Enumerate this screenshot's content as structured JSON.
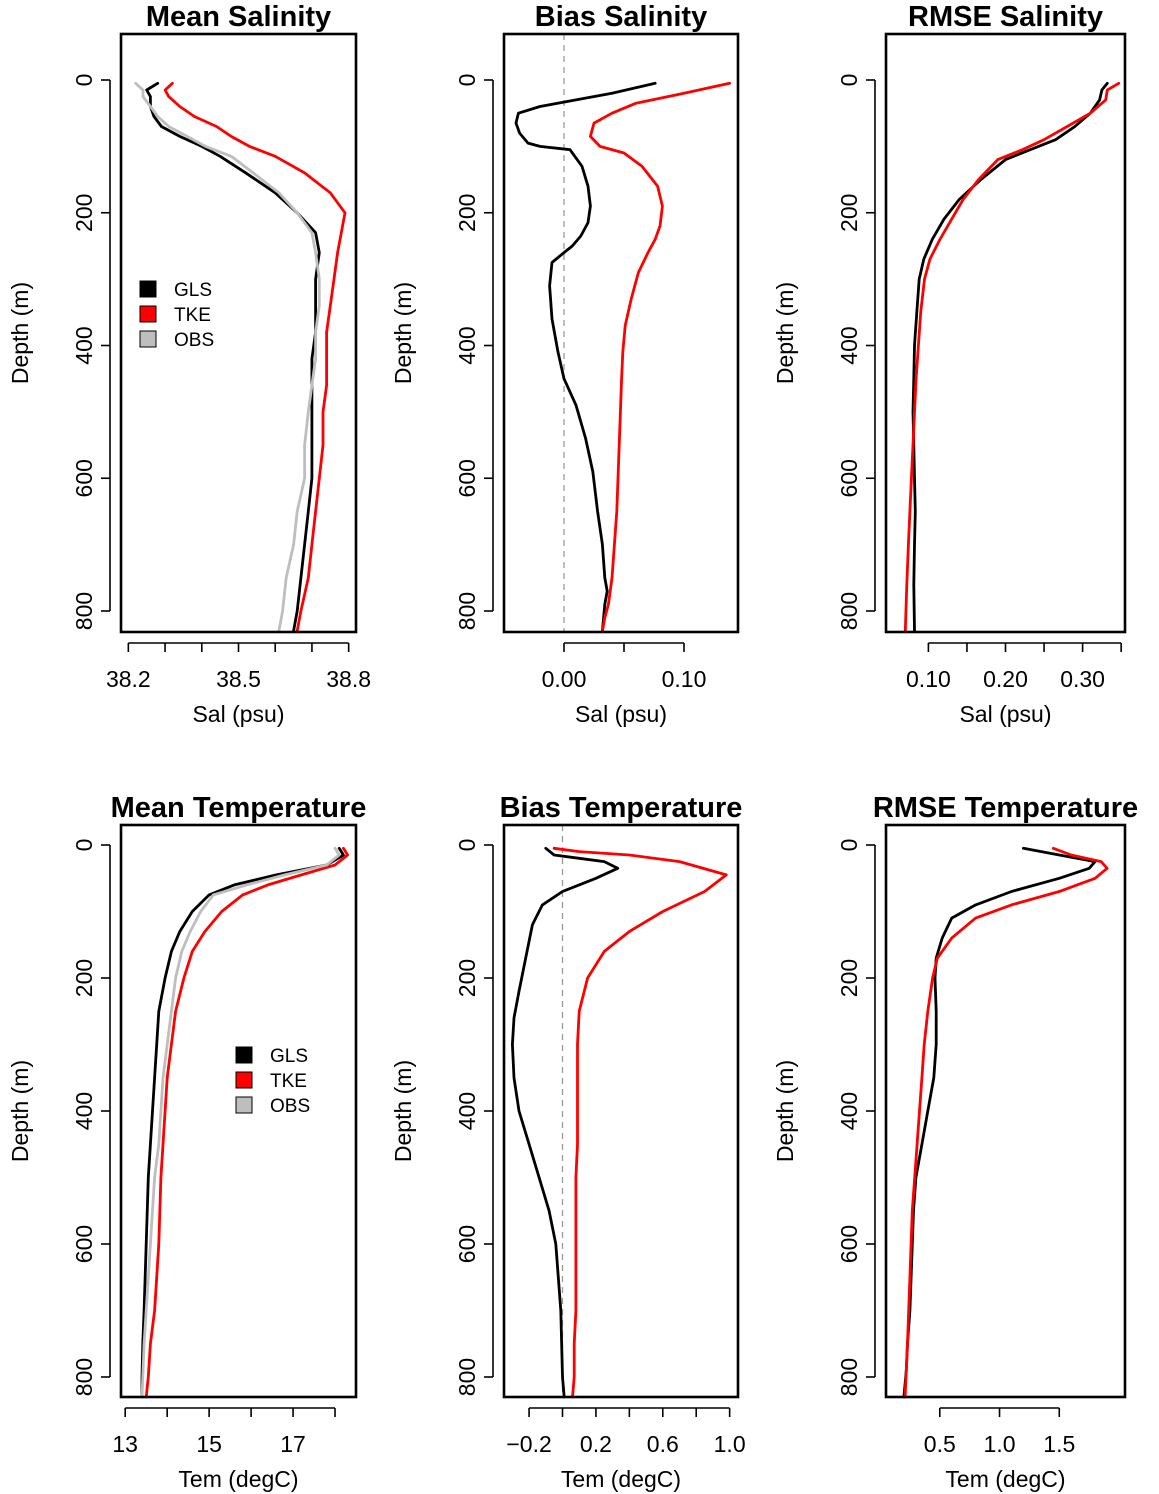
{
  "colors": {
    "GLS": "#000000",
    "TKE": "#ff0000",
    "OBS": "#bebebe"
  },
  "chart_data": [
    {
      "type": "line",
      "title": "Mean Salinity",
      "xlabel": "Sal (psu)",
      "ylabel": "Depth (m)",
      "xlim": [
        38.18,
        38.82
      ],
      "ylim": [
        0,
        830
      ],
      "x_ticks": [
        38.2,
        38.3,
        38.4,
        38.5,
        38.6,
        38.7,
        38.8
      ],
      "x_tick_labels": [
        "38.2",
        "",
        "",
        "38.5",
        "",
        "",
        "38.8"
      ],
      "y_ticks": [
        0,
        200,
        400,
        600,
        800
      ],
      "y_tick_labels": [
        "0",
        "200",
        "400",
        "600",
        "800"
      ],
      "legend": {
        "position": "center-left",
        "entries": [
          "GLS",
          "TKE",
          "OBS"
        ]
      },
      "series": [
        {
          "name": "GLS",
          "x": [
            38.28,
            38.25,
            38.26,
            38.26,
            38.27,
            38.29,
            38.34,
            38.4,
            38.45,
            38.52,
            38.6,
            38.66,
            38.71,
            38.72,
            38.71,
            38.71,
            38.71,
            38.7,
            38.7,
            38.7,
            38.7,
            38.7,
            38.69,
            38.68,
            38.67,
            38.66,
            38.65
          ],
          "y": [
            5,
            15,
            25,
            40,
            55,
            70,
            85,
            100,
            115,
            140,
            170,
            200,
            230,
            260,
            300,
            340,
            380,
            420,
            460,
            500,
            550,
            600,
            650,
            700,
            750,
            800,
            830
          ]
        },
        {
          "name": "TKE",
          "x": [
            38.32,
            38.3,
            38.31,
            38.34,
            38.38,
            38.44,
            38.48,
            38.53,
            38.6,
            38.68,
            38.75,
            38.79,
            38.78,
            38.77,
            38.76,
            38.75,
            38.74,
            38.74,
            38.74,
            38.73,
            38.73,
            38.72,
            38.71,
            38.7,
            38.69,
            38.67,
            38.66
          ],
          "y": [
            5,
            15,
            25,
            40,
            55,
            70,
            85,
            100,
            115,
            140,
            170,
            200,
            230,
            260,
            300,
            340,
            380,
            420,
            460,
            500,
            550,
            600,
            650,
            700,
            750,
            800,
            830
          ]
        },
        {
          "name": "OBS",
          "x": [
            38.22,
            38.24,
            38.24,
            38.26,
            38.28,
            38.31,
            38.36,
            38.41,
            38.48,
            38.54,
            38.61,
            38.66,
            38.7,
            38.71,
            38.72,
            38.72,
            38.71,
            38.71,
            38.7,
            38.69,
            38.68,
            38.68,
            38.66,
            38.65,
            38.63,
            38.62,
            38.61
          ],
          "y": [
            5,
            15,
            25,
            40,
            55,
            70,
            85,
            100,
            115,
            140,
            170,
            200,
            230,
            260,
            300,
            340,
            380,
            420,
            460,
            500,
            550,
            600,
            650,
            700,
            750,
            800,
            830
          ]
        }
      ]
    },
    {
      "type": "line",
      "title": "Bias Salinity",
      "xlabel": "Sal (psu)",
      "ylabel": "Depth (m)",
      "xlim": [
        -0.05,
        0.145
      ],
      "ylim": [
        0,
        830
      ],
      "x_ticks": [
        0.0,
        0.05,
        0.1
      ],
      "x_tick_labels": [
        "0.00",
        "",
        "0.10"
      ],
      "zero_line": true,
      "y_ticks": [
        0,
        200,
        400,
        600,
        800
      ],
      "y_tick_labels": [
        "0",
        "200",
        "400",
        "600",
        "800"
      ],
      "series": [
        {
          "name": "GLS",
          "x": [
            0.076,
            0.04,
            0.01,
            -0.02,
            -0.038,
            -0.04,
            -0.037,
            -0.03,
            -0.02,
            0.005,
            0.015,
            0.02,
            0.022,
            0.02,
            0.014,
            0.007,
            0.0,
            -0.01,
            -0.012,
            -0.01,
            -0.005,
            0.0,
            0.01,
            0.018,
            0.024,
            0.028,
            0.032,
            0.034,
            0.036,
            0.034,
            0.032
          ],
          "y": [
            5,
            20,
            30,
            40,
            50,
            65,
            80,
            95,
            100,
            105,
            130,
            160,
            190,
            215,
            235,
            250,
            260,
            275,
            310,
            360,
            410,
            450,
            490,
            540,
            590,
            650,
            700,
            750,
            770,
            790,
            830
          ]
        },
        {
          "name": "TKE",
          "x": [
            0.138,
            0.1,
            0.06,
            0.04,
            0.025,
            0.022,
            0.03,
            0.05,
            0.065,
            0.078,
            0.082,
            0.08,
            0.076,
            0.07,
            0.062,
            0.056,
            0.051,
            0.049,
            0.048,
            0.047,
            0.046,
            0.045,
            0.044,
            0.042,
            0.04,
            0.037,
            0.034,
            0.032
          ],
          "y": [
            5,
            20,
            35,
            50,
            65,
            85,
            100,
            110,
            130,
            160,
            190,
            220,
            240,
            260,
            290,
            330,
            370,
            410,
            450,
            500,
            550,
            600,
            650,
            700,
            750,
            790,
            810,
            830
          ]
        }
      ]
    },
    {
      "type": "line",
      "title": "RMSE Salinity",
      "xlabel": "Sal (psu)",
      "ylabel": "Depth (m)",
      "xlim": [
        0.045,
        0.355
      ],
      "ylim": [
        0,
        830
      ],
      "x_ticks": [
        0.1,
        0.15,
        0.2,
        0.25,
        0.3,
        0.35
      ],
      "x_tick_labels": [
        "0.10",
        "",
        "0.20",
        "",
        "0.30",
        ""
      ],
      "y_ticks": [
        0,
        200,
        400,
        600,
        800
      ],
      "y_tick_labels": [
        "0",
        "200",
        "400",
        "600",
        "800"
      ],
      "series": [
        {
          "name": "GLS",
          "x": [
            0.332,
            0.325,
            0.322,
            0.31,
            0.29,
            0.265,
            0.232,
            0.2,
            0.168,
            0.14,
            0.12,
            0.105,
            0.094,
            0.088,
            0.085,
            0.082,
            0.081,
            0.08,
            0.081,
            0.082,
            0.083,
            0.082,
            0.081,
            0.082
          ],
          "y": [
            5,
            15,
            30,
            50,
            70,
            90,
            105,
            120,
            150,
            180,
            210,
            240,
            270,
            300,
            350,
            400,
            450,
            500,
            550,
            600,
            650,
            700,
            760,
            830
          ]
        },
        {
          "name": "TKE",
          "x": [
            0.347,
            0.332,
            0.33,
            0.31,
            0.28,
            0.25,
            0.222,
            0.19,
            0.165,
            0.145,
            0.13,
            0.115,
            0.102,
            0.095,
            0.09,
            0.087,
            0.084,
            0.082,
            0.08,
            0.078,
            0.076,
            0.074,
            0.072,
            0.07
          ],
          "y": [
            5,
            15,
            30,
            50,
            70,
            90,
            105,
            120,
            150,
            180,
            210,
            240,
            270,
            300,
            350,
            400,
            450,
            500,
            550,
            600,
            650,
            700,
            760,
            830
          ]
        }
      ]
    },
    {
      "type": "line",
      "title": "Mean Temperature",
      "xlabel": "Tem (degC)",
      "ylabel": "Depth (m)",
      "xlim": [
        12.9,
        18.5
      ],
      "ylim": [
        0,
        830
      ],
      "x_ticks": [
        13,
        14,
        15,
        16,
        17,
        18
      ],
      "x_tick_labels": [
        "13",
        "",
        "15",
        "",
        "17",
        ""
      ],
      "y_ticks": [
        0,
        200,
        400,
        600,
        800
      ],
      "y_tick_labels": [
        "0",
        "200",
        "400",
        "600",
        "800"
      ],
      "legend": {
        "position": "center-right",
        "entries": [
          "GLS",
          "TKE",
          "OBS"
        ]
      },
      "series": [
        {
          "name": "GLS",
          "x": [
            18.1,
            18.2,
            17.8,
            16.6,
            15.6,
            15.0,
            14.6,
            14.3,
            14.1,
            13.95,
            13.8,
            13.75,
            13.7,
            13.65,
            13.6,
            13.55,
            13.5,
            13.45,
            13.42,
            13.4,
            13.4
          ],
          "y": [
            5,
            15,
            30,
            45,
            60,
            75,
            100,
            130,
            160,
            200,
            250,
            300,
            350,
            400,
            450,
            500,
            600,
            700,
            750,
            800,
            830
          ]
        },
        {
          "name": "TKE",
          "x": [
            18.2,
            18.3,
            18.0,
            17.2,
            16.4,
            15.8,
            15.3,
            14.9,
            14.6,
            14.4,
            14.2,
            14.1,
            14.0,
            13.95,
            13.9,
            13.85,
            13.8,
            13.7,
            13.6,
            13.55,
            13.5
          ],
          "y": [
            5,
            15,
            30,
            45,
            60,
            75,
            100,
            130,
            160,
            200,
            250,
            300,
            350,
            400,
            450,
            500,
            600,
            700,
            750,
            800,
            830
          ]
        },
        {
          "name": "OBS",
          "x": [
            18.0,
            18.1,
            17.8,
            16.8,
            15.9,
            15.1,
            14.8,
            14.55,
            14.35,
            14.2,
            14.1,
            14.0,
            13.9,
            13.85,
            13.8,
            13.7,
            13.6,
            13.5,
            13.45,
            13.42,
            13.4
          ],
          "y": [
            5,
            15,
            30,
            45,
            60,
            75,
            100,
            130,
            160,
            200,
            250,
            300,
            350,
            400,
            450,
            500,
            600,
            700,
            750,
            800,
            830
          ]
        }
      ]
    },
    {
      "type": "line",
      "title": "Bias Temperature",
      "xlabel": "Tem (degC)",
      "ylabel": "Depth (m)",
      "xlim": [
        -0.35,
        1.05
      ],
      "ylim": [
        0,
        830
      ],
      "x_ticks": [
        -0.2,
        0.0,
        0.2,
        0.4,
        0.6,
        0.8,
        1.0
      ],
      "x_tick_labels": [
        "−0.2",
        "",
        "0.2",
        "",
        "0.6",
        "",
        "1.0"
      ],
      "zero_line": true,
      "y_ticks": [
        0,
        200,
        400,
        600,
        800
      ],
      "y_tick_labels": [
        "0",
        "200",
        "400",
        "600",
        "800"
      ],
      "series": [
        {
          "name": "GLS",
          "x": [
            -0.1,
            -0.05,
            0.1,
            0.25,
            0.33,
            0.2,
            0.0,
            -0.12,
            -0.18,
            -0.22,
            -0.26,
            -0.29,
            -0.3,
            -0.29,
            -0.26,
            -0.2,
            -0.14,
            -0.08,
            -0.04,
            -0.01,
            0.0,
            0.01
          ],
          "y": [
            5,
            15,
            20,
            25,
            35,
            50,
            70,
            90,
            120,
            170,
            220,
            260,
            300,
            350,
            400,
            450,
            500,
            550,
            600,
            700,
            800,
            830
          ]
        },
        {
          "name": "TKE",
          "x": [
            -0.05,
            0.1,
            0.4,
            0.7,
            0.98,
            0.85,
            0.6,
            0.4,
            0.25,
            0.15,
            0.1,
            0.09,
            0.09,
            0.09,
            0.09,
            0.08,
            0.08,
            0.08,
            0.07,
            0.07,
            0.06
          ],
          "y": [
            5,
            10,
            15,
            25,
            45,
            70,
            100,
            130,
            160,
            200,
            250,
            300,
            350,
            400,
            450,
            500,
            600,
            700,
            750,
            800,
            830
          ]
        }
      ]
    },
    {
      "type": "line",
      "title": "RMSE Temperature",
      "xlabel": "Tem (degC)",
      "ylabel": "Depth (m)",
      "xlim": [
        0.05,
        2.05
      ],
      "ylim": [
        0,
        830
      ],
      "x_ticks": [
        0.5,
        1.0,
        1.5
      ],
      "x_tick_labels": [
        "0.5",
        "1.0",
        "1.5"
      ],
      "y_ticks": [
        0,
        200,
        400,
        600,
        800
      ],
      "y_tick_labels": [
        "0",
        "200",
        "400",
        "600",
        "800"
      ],
      "series": [
        {
          "name": "GLS",
          "x": [
            1.2,
            1.5,
            1.8,
            1.75,
            1.5,
            1.1,
            0.8,
            0.6,
            0.52,
            0.47,
            0.46,
            0.47,
            0.47,
            0.45,
            0.4,
            0.35,
            0.3,
            0.28,
            0.27,
            0.26,
            0.25,
            0.23,
            0.22,
            0.2
          ],
          "y": [
            5,
            15,
            25,
            35,
            50,
            70,
            90,
            110,
            140,
            170,
            200,
            250,
            300,
            350,
            400,
            450,
            500,
            550,
            600,
            650,
            700,
            750,
            790,
            830
          ]
        },
        {
          "name": "TKE",
          "x": [
            1.45,
            1.6,
            1.85,
            1.9,
            1.8,
            1.5,
            1.1,
            0.8,
            0.6,
            0.48,
            0.44,
            0.4,
            0.37,
            0.35,
            0.33,
            0.31,
            0.29,
            0.27,
            0.26,
            0.25,
            0.24,
            0.23,
            0.22,
            0.21
          ],
          "y": [
            5,
            15,
            25,
            35,
            50,
            70,
            90,
            110,
            140,
            170,
            200,
            250,
            300,
            350,
            400,
            450,
            500,
            550,
            600,
            650,
            700,
            750,
            790,
            830
          ]
        }
      ]
    }
  ]
}
